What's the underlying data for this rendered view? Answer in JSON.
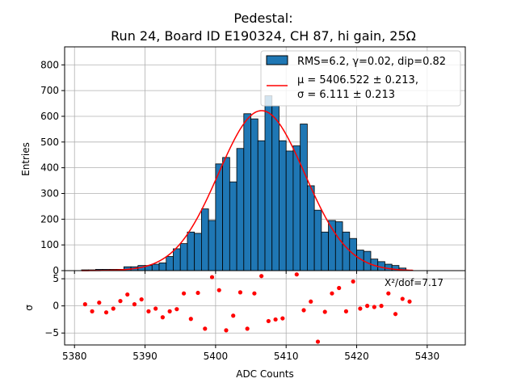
{
  "chart_data": [
    {
      "type": "bar",
      "title": "Pedestal:",
      "subtitle": "Run 24, Board ID E190324, CH 87, hi gain, 25Ω",
      "xlabel": "",
      "ylabel": "Entries",
      "xlim": [
        5378.6,
        5435.4
      ],
      "ylim": [
        0,
        870
      ],
      "yticks": [
        0,
        100,
        200,
        300,
        400,
        500,
        600,
        700,
        800
      ],
      "grid": true,
      "legend_position": "top-right",
      "bin_edges_start": 5381,
      "bin_width": 1,
      "counts": [
        3,
        3,
        5,
        5,
        5,
        5,
        15,
        15,
        20,
        20,
        25,
        30,
        55,
        85,
        105,
        150,
        145,
        240,
        195,
        415,
        440,
        345,
        475,
        610,
        590,
        505,
        680,
        640,
        505,
        465,
        485,
        570,
        330,
        235,
        150,
        195,
        190,
        150,
        125,
        80,
        75,
        45,
        35,
        25,
        20,
        10
      ],
      "fit": {
        "type": "gaussian",
        "mu": 5406.522,
        "sigma": 6.111,
        "amplitude": 622,
        "x_range": [
          5381,
          5428
        ]
      },
      "colors": {
        "bar": "#1f77b4",
        "fit": "#ff0000"
      },
      "legend": [
        {
          "label": "RMS=6.2, γ=0.02, dip=0.82"
        },
        {
          "line1": "μ = 5406.522 ± 0.213,",
          "line2": "σ = 6.111 ± 0.213"
        }
      ]
    },
    {
      "type": "scatter",
      "xlabel": "ADC Counts",
      "ylabel": "σ",
      "xlim": [
        5378.6,
        5435.4
      ],
      "ylim": [
        -7.2,
        6.5
      ],
      "xticks": [
        5380,
        5390,
        5400,
        5410,
        5420,
        5430
      ],
      "yticks": [
        -5,
        0,
        5
      ],
      "grid": true,
      "annotation": "X²/dof=7.17",
      "points": {
        "x": [
          5381.5,
          5382.5,
          5383.5,
          5384.5,
          5385.5,
          5386.5,
          5387.5,
          5388.5,
          5389.5,
          5390.5,
          5391.5,
          5392.5,
          5393.5,
          5394.5,
          5395.5,
          5396.5,
          5397.5,
          5398.5,
          5399.5,
          5400.5,
          5401.5,
          5402.5,
          5403.5,
          5404.5,
          5405.5,
          5406.5,
          5407.5,
          5408.5,
          5409.5,
          5411.5,
          5412.5,
          5413.5,
          5414.5,
          5415.5,
          5416.5,
          5417.5,
          5418.5,
          5419.5,
          5420.5,
          5421.5,
          5422.5,
          5423.5,
          5424.5,
          5425.5,
          5426.5,
          5427.5
        ],
        "y": [
          0.3,
          -1.0,
          0.6,
          -1.2,
          -0.5,
          0.9,
          2.1,
          0.3,
          1.2,
          -1.0,
          -0.5,
          -2.1,
          -1.0,
          -0.6,
          2.3,
          -2.4,
          2.4,
          -4.2,
          5.3,
          2.9,
          -4.5,
          -1.8,
          2.5,
          -4.2,
          2.3,
          5.5,
          -2.8,
          -2.5,
          -2.3,
          5.8,
          -0.8,
          0.8,
          -6.6,
          -1.1,
          2.3,
          3.3,
          -1.0,
          4.5,
          -0.5,
          0.0,
          -0.2,
          0.0,
          2.3,
          -1.5,
          1.3,
          0.8
        ]
      }
    }
  ]
}
